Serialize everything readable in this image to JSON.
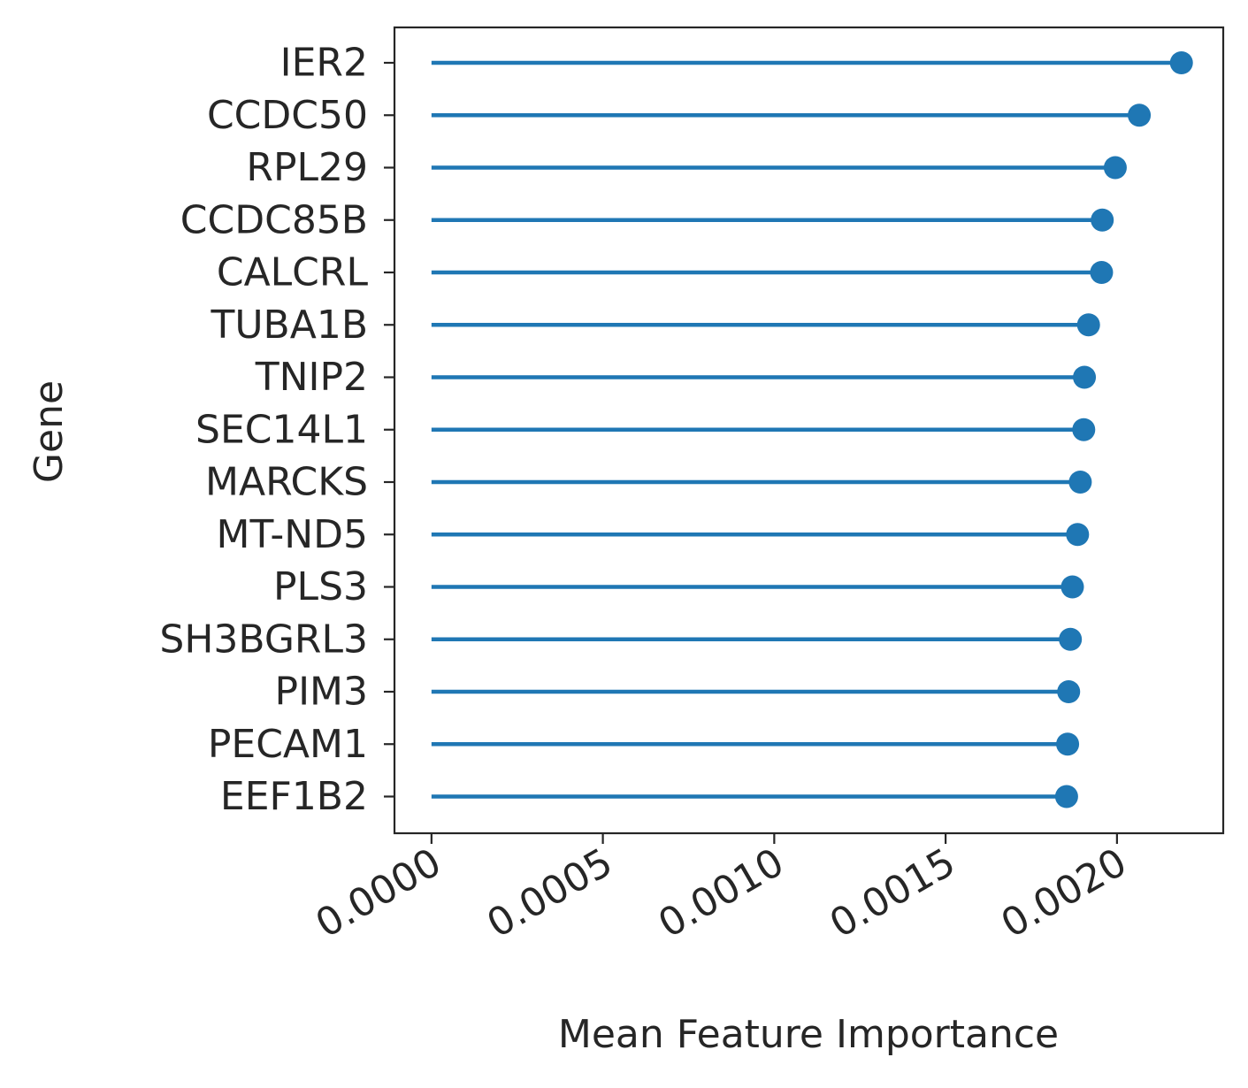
{
  "chart_data": {
    "type": "lollipop",
    "title": "",
    "xlabel": "Mean Feature Importance",
    "ylabel": "Gene",
    "xlim": [
      -0.000108,
      0.00231
    ],
    "xticks": [
      0.0,
      0.0005,
      0.001,
      0.0015,
      0.002
    ],
    "xtick_labels": [
      "0.0000",
      "0.0005",
      "0.0010",
      "0.0015",
      "0.0020"
    ],
    "grid": false,
    "color": "#1f77b4",
    "categories": [
      "IER2",
      "CCDC50",
      "RPL29",
      "CCDC85B",
      "CALCRL",
      "TUBA1B",
      "TNIP2",
      "SEC14L1",
      "MARCKS",
      "MT-ND5",
      "PLS3",
      "SH3BGRL3",
      "PIM3",
      "PECAM1",
      "EEF1B2"
    ],
    "values": [
      0.002188,
      0.002065,
      0.001995,
      0.001957,
      0.001955,
      0.001917,
      0.001905,
      0.001903,
      0.001893,
      0.001885,
      0.00187,
      0.001864,
      0.001859,
      0.001856,
      0.001853
    ]
  }
}
